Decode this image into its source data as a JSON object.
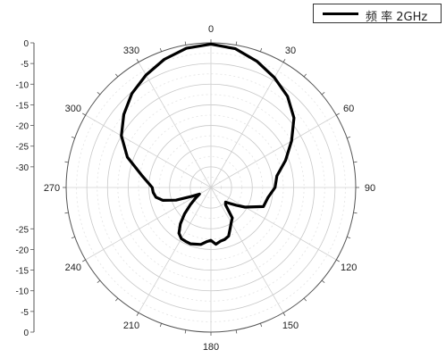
{
  "chart_data": {
    "type": "polar-line",
    "legend": {
      "label": "频 率 2GHz",
      "position": "top-right"
    },
    "angular_axis": {
      "unit": "degrees",
      "direction": "clockwise",
      "zero_at": "top",
      "tick_labels": [
        "0",
        "30",
        "60",
        "90",
        "120",
        "150",
        "180",
        "210",
        "240",
        "270",
        "300",
        "330"
      ]
    },
    "radial_axis": {
      "range": [
        -35,
        0
      ],
      "ticks": [
        0,
        -5,
        -10,
        -15,
        -20,
        -25,
        -30
      ],
      "upper_tick_labels": [
        "0",
        "-5",
        "-10",
        "-15",
        "-20",
        "-25",
        "-30"
      ],
      "lower_tick_labels": [
        "-25",
        "-20",
        "-15",
        "-10",
        "-5",
        "0"
      ]
    },
    "grid": true,
    "series": [
      {
        "name": "频 率 2GHz",
        "color": "#000000",
        "angles": [
          0,
          10,
          20,
          30,
          40,
          50,
          60,
          70,
          80,
          90,
          100,
          110,
          120,
          125,
          130,
          135,
          140,
          145,
          150,
          155,
          160,
          165,
          170,
          175,
          180,
          185,
          190,
          195,
          200,
          205,
          210,
          215,
          220,
          225,
          230,
          235,
          240,
          245,
          250,
          255,
          260,
          265,
          270,
          280,
          290,
          300,
          310,
          320,
          330,
          340,
          350
        ],
        "values": [
          -0.3,
          -0.9,
          -2.5,
          -4.3,
          -6.2,
          -8.8,
          -12.5,
          -15.8,
          -18.8,
          -19.5,
          -21.0,
          -21.5,
          -25.5,
          -27.5,
          -29.0,
          -30.0,
          -29.5,
          -26.0,
          -25.2,
          -24.0,
          -22.5,
          -22.0,
          -21.8,
          -21.2,
          -22.2,
          -21.8,
          -21.0,
          -20.8,
          -20.5,
          -20.6,
          -20.7,
          -21.5,
          -23.5,
          -26.0,
          -28.5,
          -30.5,
          -31.8,
          -30.0,
          -26.0,
          -23.0,
          -21.5,
          -21.0,
          -20.8,
          -18.0,
          -13.5,
          -10.0,
          -7.5,
          -5.3,
          -3.6,
          -2.0,
          -0.8
        ]
      }
    ]
  }
}
